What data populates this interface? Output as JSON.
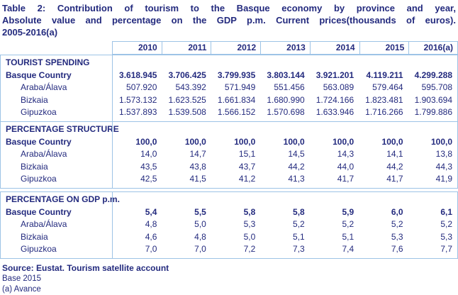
{
  "title_lines": [
    "Table 2: Contribution of tourism to the Basque economy by province and year,",
    "Absolute value and percentage on the GDP p.m. Current prices(thousands of euros).",
    "2005-2016(a)"
  ],
  "chart_data": {
    "type": "table",
    "title": "Table 2: Contribution of tourism to the Basque economy by province and year, Absolute value and percentage on the GDP p.m. Current prices(thousands of euros). 2005-2016(a)",
    "columns": [
      "2010",
      "2011",
      "2012",
      "2013",
      "2014",
      "2015",
      "2016(a)"
    ],
    "sections": [
      {
        "heading": "TOURIST SPENDING",
        "unit": "thousands of euros",
        "rows": [
          {
            "label": "Basque Country",
            "bold": true,
            "sub": false,
            "values": [
              "3.618.945",
              "3.706.425",
              "3.799.935",
              "3.803.144",
              "3.921.201",
              "4.119.211",
              "4.299.288"
            ]
          },
          {
            "label": "Araba/Álava",
            "bold": false,
            "sub": true,
            "values": [
              "507.920",
              "543.392",
              "571.949",
              "551.456",
              "563.089",
              "579.464",
              "595.708"
            ]
          },
          {
            "label": "Bizkaia",
            "bold": false,
            "sub": true,
            "values": [
              "1.573.132",
              "1.623.525",
              "1.661.834",
              "1.680.990",
              "1.724.166",
              "1.823.481",
              "1.903.694"
            ]
          },
          {
            "label": "Gipuzkoa",
            "bold": false,
            "sub": true,
            "values": [
              "1.537.893",
              "1.539.508",
              "1.566.152",
              "1.570.698",
              "1.633.946",
              "1.716.266",
              "1.799.886"
            ]
          }
        ]
      },
      {
        "heading": "PERCENTAGE STRUCTURE",
        "unit": "percent",
        "rows": [
          {
            "label": "Basque Country",
            "bold": true,
            "sub": false,
            "values": [
              "100,0",
              "100,0",
              "100,0",
              "100,0",
              "100,0",
              "100,0",
              "100,0"
            ]
          },
          {
            "label": "Araba/Álava",
            "bold": false,
            "sub": true,
            "values": [
              "14,0",
              "14,7",
              "15,1",
              "14,5",
              "14,3",
              "14,1",
              "13,8"
            ]
          },
          {
            "label": "Bizkaia",
            "bold": false,
            "sub": true,
            "values": [
              "43,5",
              "43,8",
              "43,7",
              "44,2",
              "44,0",
              "44,2",
              "44,3"
            ]
          },
          {
            "label": "Gipuzkoa",
            "bold": false,
            "sub": true,
            "values": [
              "42,5",
              "41,5",
              "41,2",
              "41,3",
              "41,7",
              "41,7",
              "41,9"
            ]
          }
        ]
      },
      {
        "heading": "PERCENTAGE ON GDP p.m.",
        "unit": "percent",
        "rows": [
          {
            "label": "Basque Country",
            "bold": true,
            "sub": false,
            "values": [
              "5,4",
              "5,5",
              "5,8",
              "5,8",
              "5,9",
              "6,0",
              "6,1"
            ]
          },
          {
            "label": "Araba/Álava",
            "bold": false,
            "sub": true,
            "values": [
              "4,8",
              "5,0",
              "5,3",
              "5,2",
              "5,2",
              "5,2",
              "5,2"
            ]
          },
          {
            "label": "Bizkaia",
            "bold": false,
            "sub": true,
            "values": [
              "4,6",
              "4,8",
              "5,0",
              "5,1",
              "5,1",
              "5,3",
              "5,3"
            ]
          },
          {
            "label": "Gipuzkoa",
            "bold": false,
            "sub": true,
            "values": [
              "7,0",
              "7,0",
              "7,2",
              "7,3",
              "7,4",
              "7,6",
              "7,7"
            ]
          }
        ]
      }
    ]
  },
  "footer": {
    "source": "Source: Eustat. Tourism satellite account",
    "base": "Base 2015",
    "note": "(a) Avance"
  },
  "colors": {
    "text_navy": "#232a7e",
    "border_blue": "#9dc3e6",
    "background": "#ffffff"
  }
}
